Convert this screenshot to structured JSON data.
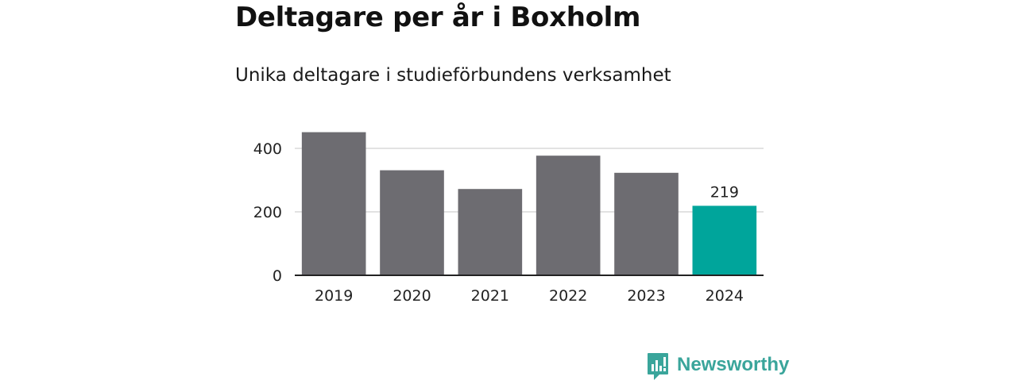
{
  "title": "Deltagare per år i Boxholm",
  "subtitle": "Unika deltagare i studieförbundens verksamhet",
  "brand": {
    "name": "Newsworthy",
    "icon": "bar-chart-bubble-icon",
    "color": "#3aa59b"
  },
  "chart_data": {
    "type": "bar",
    "categories": [
      "2019",
      "2020",
      "2021",
      "2022",
      "2023",
      "2024"
    ],
    "values": [
      451,
      331,
      272,
      377,
      323,
      219
    ],
    "yticks": [
      0,
      200,
      400
    ],
    "ylim": [
      0,
      480
    ],
    "grid": true,
    "bar_color": "#6d6c71",
    "highlight_color": "#00a59b",
    "highlight_index": 5,
    "value_labels": {
      "5": "219"
    }
  }
}
